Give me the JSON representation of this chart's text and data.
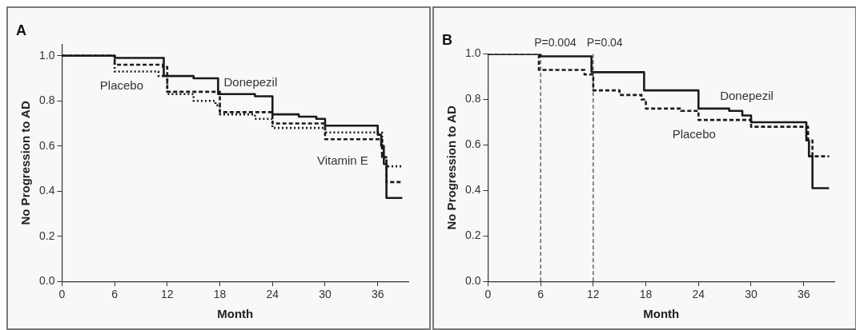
{
  "chart_data": [
    {
      "type": "step",
      "title": "A",
      "xlabel": "Month",
      "ylabel": "No Progression to AD",
      "xlim": [
        0,
        39.5
      ],
      "xticks": [
        0,
        6,
        12,
        18,
        24,
        30,
        36
      ],
      "ylim": [
        0,
        1.05
      ],
      "yticks": [
        {
          "value": 0,
          "label": "0.0"
        },
        {
          "value": 0.2,
          "label": "0.2"
        },
        {
          "value": 0.4,
          "label": "0.4"
        },
        {
          "value": 0.6,
          "label": "0.6"
        },
        {
          "value": 0.8,
          "label": "0.8"
        },
        {
          "value": 1,
          "label": "1.0"
        }
      ],
      "grid": false,
      "legend": false,
      "series": [
        {
          "name": "Donepezil",
          "color": "#1a1a1a",
          "line_style": "solid",
          "x": [
            0,
            6,
            11.6,
            15,
            17.8,
            22,
            24,
            27,
            29,
            30,
            36,
            36.4,
            36.7,
            37,
            38.8
          ],
          "values": [
            1,
            0.99,
            0.91,
            0.9,
            0.83,
            0.82,
            0.74,
            0.73,
            0.72,
            0.69,
            0.65,
            0.6,
            0.52,
            0.37,
            0.37
          ]
        },
        {
          "name": "Vitamin E",
          "color": "#1a1a1a",
          "line_style": "dashed",
          "x": [
            0,
            6,
            11.5,
            12,
            18,
            24,
            30,
            36,
            36.5,
            37,
            38.8
          ],
          "values": [
            1,
            0.96,
            0.95,
            0.84,
            0.75,
            0.7,
            0.63,
            0.63,
            0.55,
            0.44,
            0.44
          ]
        },
        {
          "name": "Placebo",
          "color": "#1a1a1a",
          "line_style": "dotted",
          "x": [
            0,
            6,
            11,
            12,
            15,
            17.5,
            18,
            22,
            24,
            30,
            36,
            36.5,
            37,
            38.8
          ],
          "values": [
            1,
            0.93,
            0.91,
            0.83,
            0.8,
            0.78,
            0.74,
            0.72,
            0.68,
            0.66,
            0.66,
            0.55,
            0.51,
            0.51
          ]
        }
      ]
    },
    {
      "type": "step",
      "title": "B",
      "xlabel": "Month",
      "ylabel": "No Progression to AD",
      "xlim": [
        0,
        39.5
      ],
      "xticks": [
        0,
        6,
        12,
        18,
        24,
        30,
        36
      ],
      "ylim": [
        0,
        1.0
      ],
      "yticks": [
        {
          "value": 0,
          "label": "0.0"
        },
        {
          "value": 0.2,
          "label": "0.2"
        },
        {
          "value": 0.4,
          "label": "0.4"
        },
        {
          "value": 0.6,
          "label": "0.6"
        },
        {
          "value": 0.8,
          "label": "0.8"
        },
        {
          "value": 1,
          "label": "1.0"
        }
      ],
      "grid": false,
      "legend": false,
      "ref_lines": [
        {
          "axis": "x",
          "value": 6,
          "line_style": "dashed",
          "color": "#1a1a1a"
        },
        {
          "axis": "x",
          "value": 12,
          "line_style": "dashed",
          "color": "#1a1a1a"
        }
      ],
      "annotations": [
        {
          "text": "P=0.004",
          "x": 6,
          "y": 1.0
        },
        {
          "text": "P=0.04",
          "x": 12,
          "y": 1.0
        }
      ],
      "series": [
        {
          "name": "Donepezil",
          "color": "#1a1a1a",
          "line_style": "solid",
          "x": [
            0,
            6,
            11.8,
            17.8,
            24,
            27.5,
            29,
            30,
            36,
            36.3,
            36.6,
            37,
            38.9
          ],
          "values": [
            1,
            0.99,
            0.92,
            0.84,
            0.76,
            0.75,
            0.73,
            0.7,
            0.7,
            0.62,
            0.55,
            0.41,
            0.41
          ]
        },
        {
          "name": "Placebo",
          "color": "#1a1a1a",
          "line_style": "dashed",
          "x": [
            0,
            5.8,
            11,
            12,
            15,
            17.5,
            18,
            22,
            24,
            30,
            36,
            36.5,
            37,
            38.9
          ],
          "values": [
            1,
            0.93,
            0.91,
            0.84,
            0.82,
            0.8,
            0.76,
            0.75,
            0.71,
            0.68,
            0.68,
            0.62,
            0.55,
            0.55
          ]
        }
      ]
    }
  ]
}
